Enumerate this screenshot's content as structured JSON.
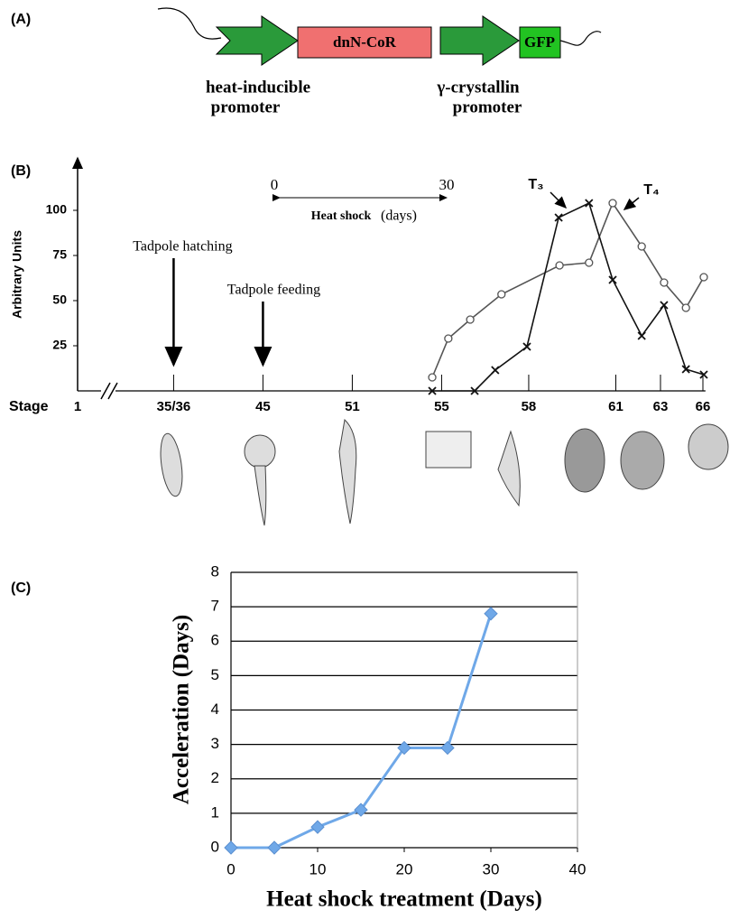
{
  "panel_a": {
    "label": "(A)",
    "box_1": "dnN-CoR",
    "box_2": "GFP",
    "promoter_1": [
      "heat-inducible",
      "promoter"
    ],
    "promoter_2": [
      "γ-crystallin",
      "promoter"
    ]
  },
  "chart_data": [
    {
      "type": "line",
      "panel_label": "(B)",
      "y_label": "Arbitrary Units",
      "x_label": "Stage",
      "xlim": [
        0,
        14.3
      ],
      "ylim": [
        0,
        129
      ],
      "xticks": [
        {
          "value": 0,
          "label": "1"
        },
        {
          "value": 2.15,
          "label": "35/36"
        },
        {
          "value": 4.15,
          "label": "45"
        },
        {
          "value": 6.15,
          "label": "51"
        },
        {
          "value": 8.15,
          "label": "55"
        },
        {
          "value": 10.1,
          "label": "58"
        },
        {
          "value": 12.05,
          "label": "61"
        },
        {
          "value": 13.05,
          "label": "63"
        },
        {
          "value": 14.0,
          "label": "66"
        }
      ],
      "yticks": [
        25,
        50,
        75,
        100
      ],
      "annotations": {
        "hatching": "Tadpole hatching",
        "feeding": "Tadpole feeding",
        "heat_start": "0",
        "heat_end": "30",
        "heat_label": "Heat shock",
        "heat_unit": "(days)",
        "t3": "T₃",
        "t4": "T₄"
      },
      "series": [
        {
          "marker": "circle",
          "color": "#555555",
          "x": [
            7.94,
            8.3,
            8.79,
            9.49,
            10.79,
            11.45,
            11.98,
            12.63,
            13.13,
            13.62,
            14.02
          ],
          "values": [
            7.5,
            29,
            39.5,
            53.5,
            69.5,
            71,
            104,
            80,
            60,
            46,
            63
          ]
        },
        {
          "marker": "cross",
          "color": "#111111",
          "x": [
            7.94,
            8.89,
            9.35,
            10.06,
            10.77,
            11.45,
            11.98,
            12.63,
            13.13,
            13.62,
            14.02
          ],
          "values": [
            0,
            0,
            11.5,
            24.5,
            96,
            104,
            61.5,
            30.5,
            47.5,
            12,
            9
          ]
        }
      ]
    },
    {
      "type": "line",
      "panel_label": "(C)",
      "x_label": "Heat shock treatment (Days)",
      "y_label": "Acceleration (Days)",
      "x": [
        0,
        5,
        10,
        15,
        20,
        25,
        30
      ],
      "values": [
        0,
        0,
        0.6,
        1.1,
        2.9,
        2.9,
        6.8
      ],
      "color": "#6fa8e8",
      "xlim": [
        0,
        40
      ],
      "xticks": [
        0,
        10,
        20,
        30,
        40
      ],
      "ylim": [
        0,
        8
      ],
      "yticks": [
        0,
        1,
        2,
        3,
        4,
        5,
        6,
        7,
        8
      ],
      "grid": true
    }
  ]
}
